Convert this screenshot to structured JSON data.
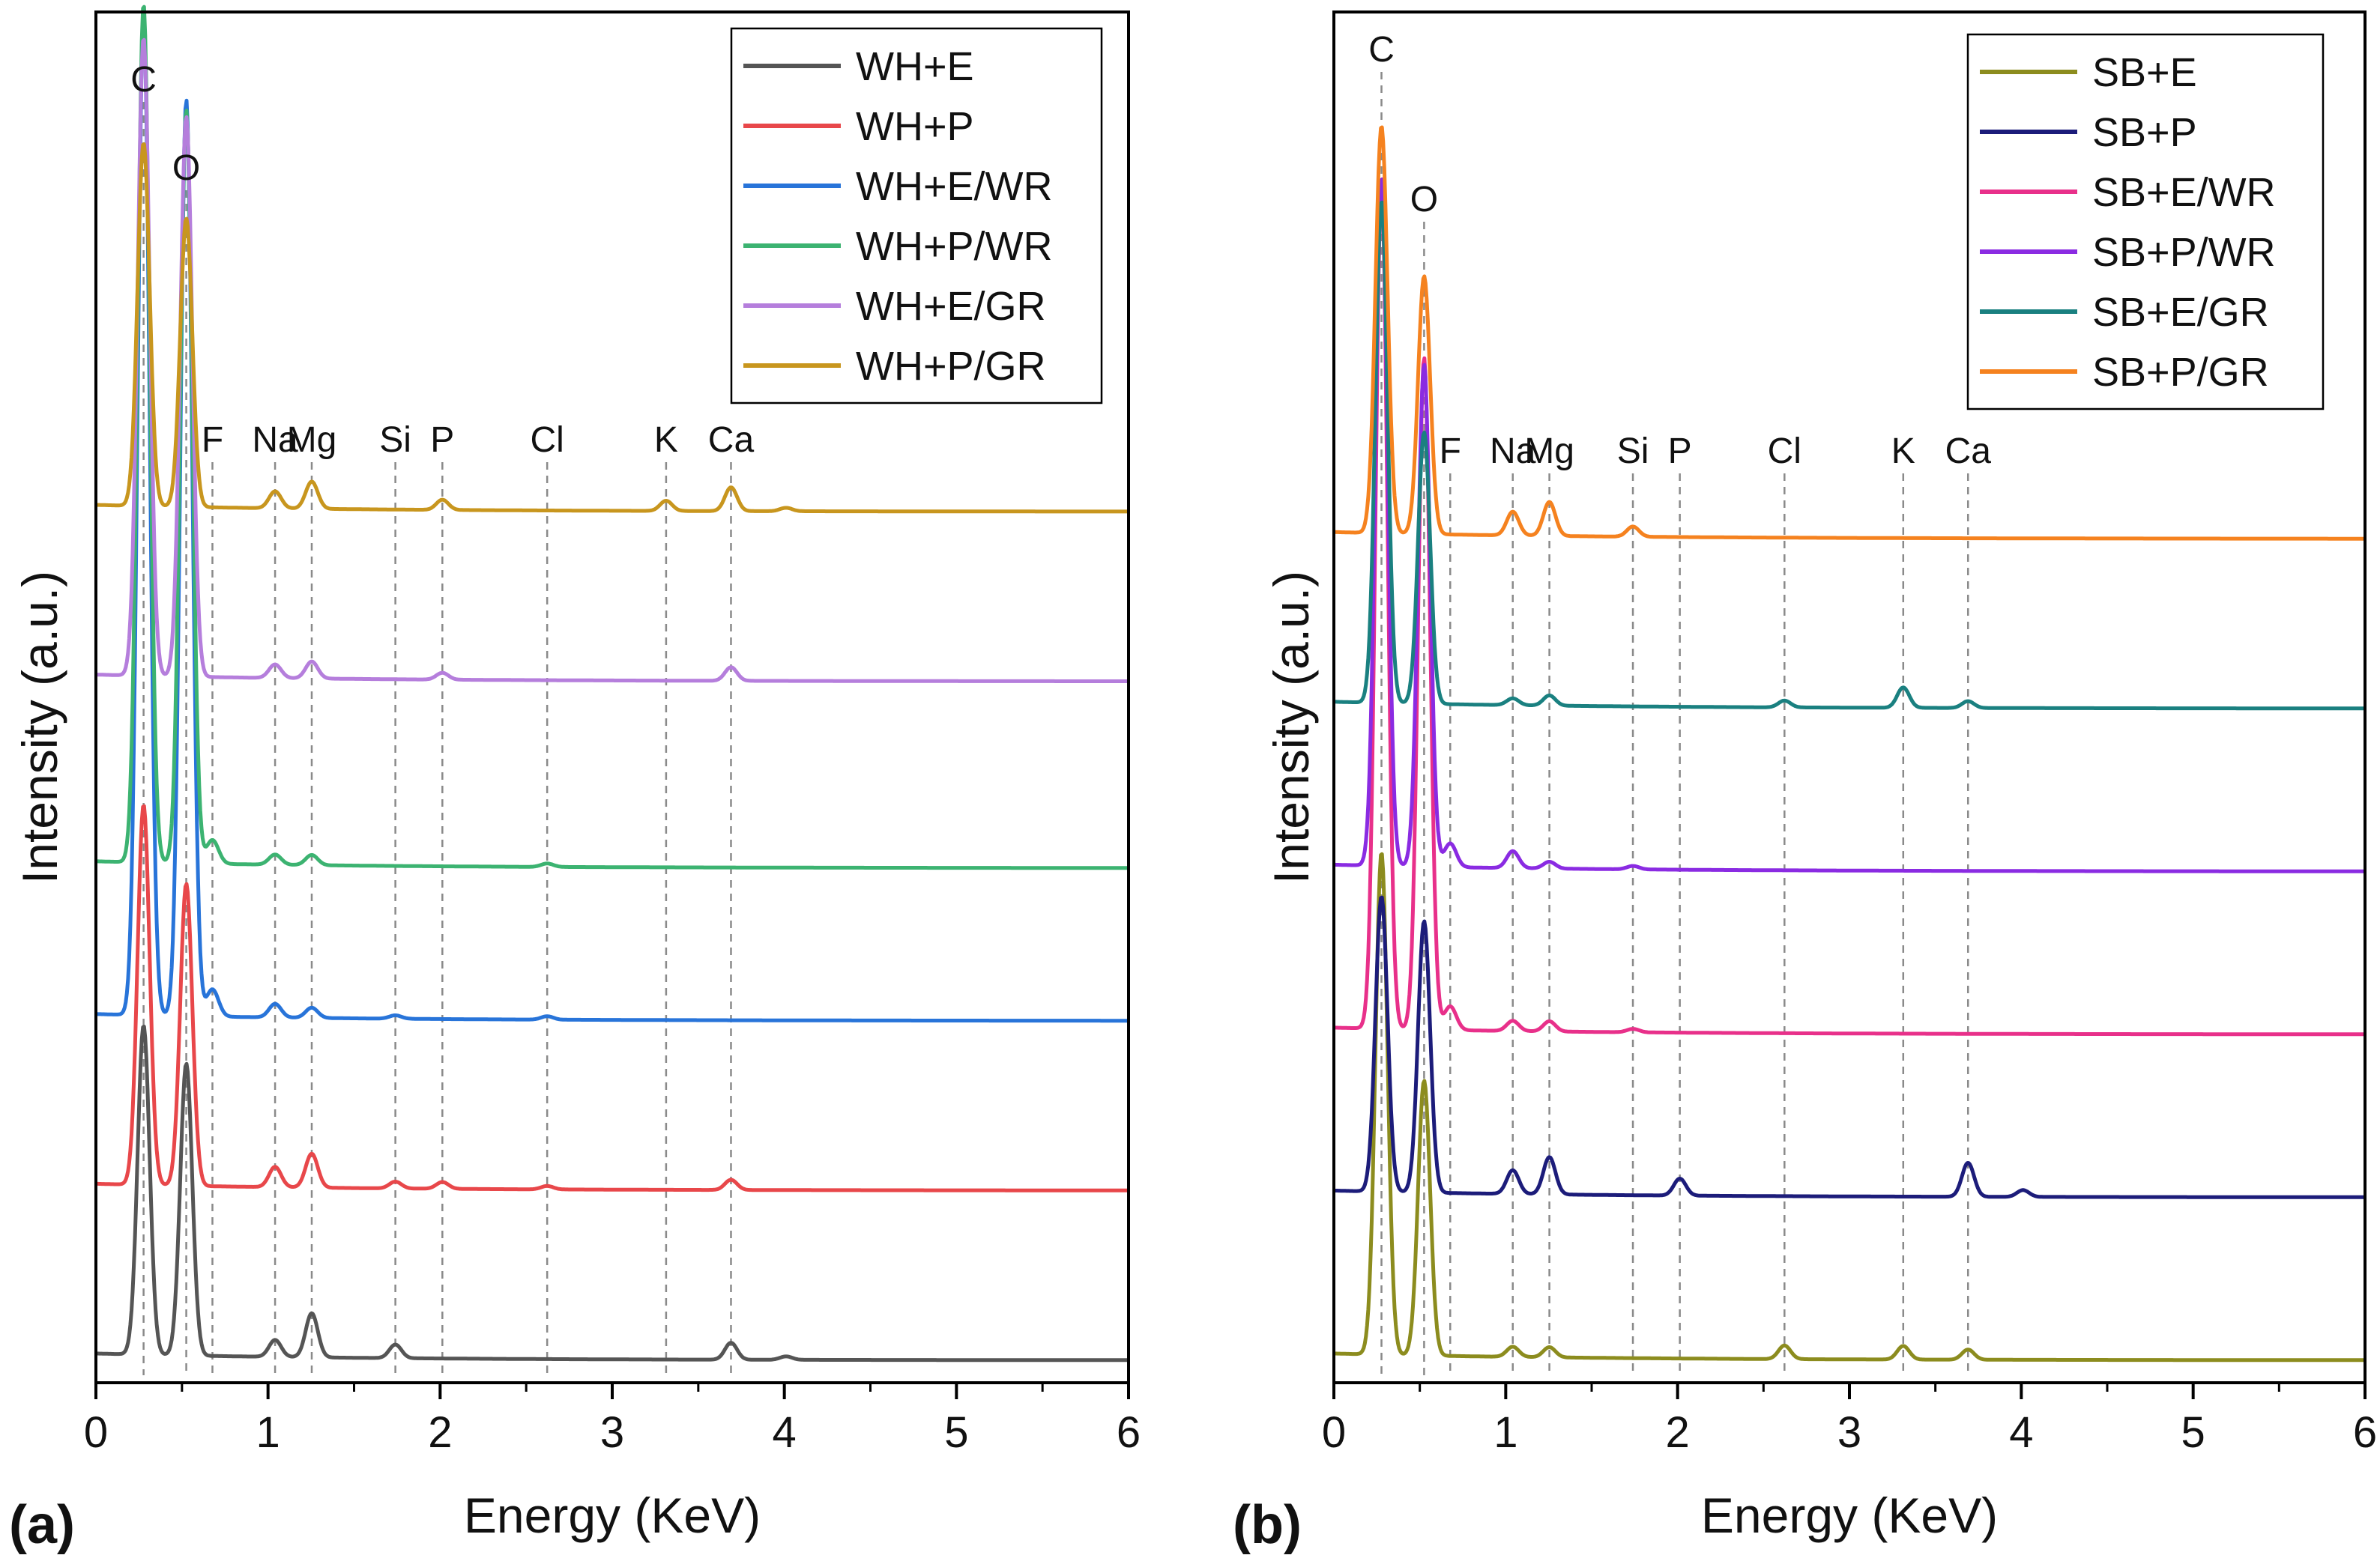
{
  "panels": [
    {
      "tag": "(a)",
      "xlabel": "Energy (KeV)",
      "ylabel": "Intensity (a.u.)",
      "xticks": [
        "0",
        "1",
        "2",
        "3",
        "4",
        "5",
        "6"
      ],
      "elements": [
        {
          "symbol": "C",
          "energy": 0.277
        },
        {
          "symbol": "O",
          "energy": 0.525
        },
        {
          "symbol": "F",
          "energy": 0.677
        },
        {
          "symbol": "Na",
          "energy": 1.041
        },
        {
          "symbol": "Mg",
          "energy": 1.254
        },
        {
          "symbol": "Si",
          "energy": 1.74
        },
        {
          "symbol": "P",
          "energy": 2.013
        },
        {
          "symbol": "Cl",
          "energy": 2.622
        },
        {
          "symbol": "K",
          "energy": 3.313
        },
        {
          "symbol": "Ca",
          "energy": 3.69
        }
      ],
      "legend": [
        "WH+E",
        "WH+P",
        "WH+E/WR",
        "WH+P/WR",
        "WH+E/GR",
        "WH+P/GR"
      ]
    },
    {
      "tag": "(b)",
      "xlabel": "Energy (KeV)",
      "ylabel": "Intensity (a.u.)",
      "xticks": [
        "0",
        "1",
        "2",
        "3",
        "4",
        "5",
        "6"
      ],
      "elements": [
        {
          "symbol": "C",
          "energy": 0.277
        },
        {
          "symbol": "O",
          "energy": 0.525
        },
        {
          "symbol": "F",
          "energy": 0.677
        },
        {
          "symbol": "Na",
          "energy": 1.041
        },
        {
          "symbol": "Mg",
          "energy": 1.254
        },
        {
          "symbol": "Si",
          "energy": 1.74
        },
        {
          "symbol": "P",
          "energy": 2.013
        },
        {
          "symbol": "Cl",
          "energy": 2.622
        },
        {
          "symbol": "K",
          "energy": 3.313
        },
        {
          "symbol": "Ca",
          "energy": 3.69
        }
      ],
      "legend": [
        "SB+E",
        "SB+P",
        "SB+E/WR",
        "SB+P/WR",
        "SB+E/GR",
        "SB+P/GR"
      ]
    }
  ],
  "chart_data": [
    {
      "type": "line",
      "title": "",
      "xlabel": "Energy (KeV)",
      "ylabel": "Intensity (a.u.)",
      "xlim": [
        0,
        6
      ],
      "y_ticks_shown": false,
      "stacked_offset_spectra": true,
      "legend_position": "top-right",
      "series": [
        {
          "name": "WH+E",
          "color": "#555555",
          "baseline": 0.0,
          "peaks": [
            {
              "x": 0.277,
              "h": 0.97
            },
            {
              "x": 0.525,
              "h": 0.86
            },
            {
              "x": 1.041,
              "h": 0.05
            },
            {
              "x": 1.254,
              "h": 0.13
            },
            {
              "x": 1.74,
              "h": 0.04
            },
            {
              "x": 3.69,
              "h": 0.05
            },
            {
              "x": 4.01,
              "h": 0.01
            }
          ]
        },
        {
          "name": "WH+P",
          "color": "#e8474a",
          "baseline": 0.5,
          "peaks": [
            {
              "x": 0.277,
              "h": 1.12
            },
            {
              "x": 0.525,
              "h": 0.89
            },
            {
              "x": 1.041,
              "h": 0.06
            },
            {
              "x": 1.254,
              "h": 0.1
            },
            {
              "x": 1.74,
              "h": 0.02
            },
            {
              "x": 2.013,
              "h": 0.02
            },
            {
              "x": 2.622,
              "h": 0.01
            },
            {
              "x": 3.69,
              "h": 0.03
            }
          ]
        },
        {
          "name": "WH+E/WR",
          "color": "#2874d9",
          "baseline": 1.0,
          "peaks": [
            {
              "x": 0.277,
              "h": 2.95
            },
            {
              "x": 0.525,
              "h": 2.7
            },
            {
              "x": 0.677,
              "h": 0.08
            },
            {
              "x": 1.041,
              "h": 0.04
            },
            {
              "x": 1.254,
              "h": 0.03
            },
            {
              "x": 1.74,
              "h": 0.01
            },
            {
              "x": 2.622,
              "h": 0.01
            }
          ]
        },
        {
          "name": "WH+P/WR",
          "color": "#3cb371",
          "baseline": 1.45,
          "peaks": [
            {
              "x": 0.277,
              "h": 2.53
            },
            {
              "x": 0.525,
              "h": 2.22
            },
            {
              "x": 0.677,
              "h": 0.07
            },
            {
              "x": 1.041,
              "h": 0.03
            },
            {
              "x": 1.254,
              "h": 0.03
            },
            {
              "x": 2.622,
              "h": 0.01
            }
          ]
        },
        {
          "name": "WH+E/GR",
          "color": "#b57edc",
          "baseline": 2.0,
          "peaks": [
            {
              "x": 0.277,
              "h": 1.88
            },
            {
              "x": 0.525,
              "h": 1.65
            },
            {
              "x": 1.041,
              "h": 0.04
            },
            {
              "x": 1.254,
              "h": 0.05
            },
            {
              "x": 2.013,
              "h": 0.02
            },
            {
              "x": 3.69,
              "h": 0.04
            }
          ]
        },
        {
          "name": "WH+P/GR",
          "color": "#c8961e",
          "baseline": 2.5,
          "peaks": [
            {
              "x": 0.277,
              "h": 1.07
            },
            {
              "x": 0.525,
              "h": 0.85
            },
            {
              "x": 1.041,
              "h": 0.05
            },
            {
              "x": 1.254,
              "h": 0.08
            },
            {
              "x": 2.013,
              "h": 0.03
            },
            {
              "x": 3.313,
              "h": 0.03
            },
            {
              "x": 3.69,
              "h": 0.07
            },
            {
              "x": 4.01,
              "h": 0.01
            }
          ]
        }
      ]
    },
    {
      "type": "line",
      "title": "",
      "xlabel": "Energy (KeV)",
      "ylabel": "Intensity (a.u.)",
      "xlim": [
        0,
        6
      ],
      "y_ticks_shown": false,
      "stacked_offset_spectra": true,
      "legend_position": "top-right",
      "series": [
        {
          "name": "SB+E",
          "color": "#8c8c1e",
          "baseline": 0.0,
          "peaks": [
            {
              "x": 0.277,
              "h": 1.48
            },
            {
              "x": 0.525,
              "h": 0.81
            },
            {
              "x": 1.041,
              "h": 0.03
            },
            {
              "x": 1.254,
              "h": 0.03
            },
            {
              "x": 2.622,
              "h": 0.04
            },
            {
              "x": 3.313,
              "h": 0.04
            },
            {
              "x": 3.69,
              "h": 0.03
            }
          ]
        },
        {
          "name": "SB+P",
          "color": "#1c1c7a",
          "baseline": 0.48,
          "peaks": [
            {
              "x": 0.277,
              "h": 0.87
            },
            {
              "x": 0.525,
              "h": 0.8
            },
            {
              "x": 1.041,
              "h": 0.07
            },
            {
              "x": 1.254,
              "h": 0.11
            },
            {
              "x": 2.013,
              "h": 0.05
            },
            {
              "x": 3.69,
              "h": 0.1
            },
            {
              "x": 4.01,
              "h": 0.02
            }
          ]
        },
        {
          "name": "SB+E/WR",
          "color": "#e8308a",
          "baseline": 0.96,
          "peaks": [
            {
              "x": 0.277,
              "h": 2.49
            },
            {
              "x": 0.525,
              "h": 1.98
            },
            {
              "x": 0.677,
              "h": 0.07
            },
            {
              "x": 1.041,
              "h": 0.03
            },
            {
              "x": 1.254,
              "h": 0.03
            },
            {
              "x": 1.74,
              "h": 0.01
            }
          ]
        },
        {
          "name": "SB+P/WR",
          "color": "#8a2be2",
          "baseline": 1.44,
          "peaks": [
            {
              "x": 0.277,
              "h": 2.03
            },
            {
              "x": 0.525,
              "h": 1.48
            },
            {
              "x": 0.677,
              "h": 0.07
            },
            {
              "x": 1.041,
              "h": 0.05
            },
            {
              "x": 1.254,
              "h": 0.02
            },
            {
              "x": 1.74,
              "h": 0.01
            }
          ]
        },
        {
          "name": "SB+E/GR",
          "color": "#1a8080",
          "baseline": 1.92,
          "peaks": [
            {
              "x": 0.277,
              "h": 1.48
            },
            {
              "x": 0.525,
              "h": 0.8
            },
            {
              "x": 1.041,
              "h": 0.02
            },
            {
              "x": 1.254,
              "h": 0.03
            },
            {
              "x": 2.622,
              "h": 0.02
            },
            {
              "x": 3.313,
              "h": 0.06
            },
            {
              "x": 3.69,
              "h": 0.02
            }
          ]
        },
        {
          "name": "SB+P/GR",
          "color": "#f5821f",
          "baseline": 2.42,
          "peaks": [
            {
              "x": 0.277,
              "h": 1.2
            },
            {
              "x": 0.525,
              "h": 0.76
            },
            {
              "x": 1.041,
              "h": 0.07
            },
            {
              "x": 1.254,
              "h": 0.1
            },
            {
              "x": 1.74,
              "h": 0.03
            }
          ]
        }
      ]
    }
  ]
}
